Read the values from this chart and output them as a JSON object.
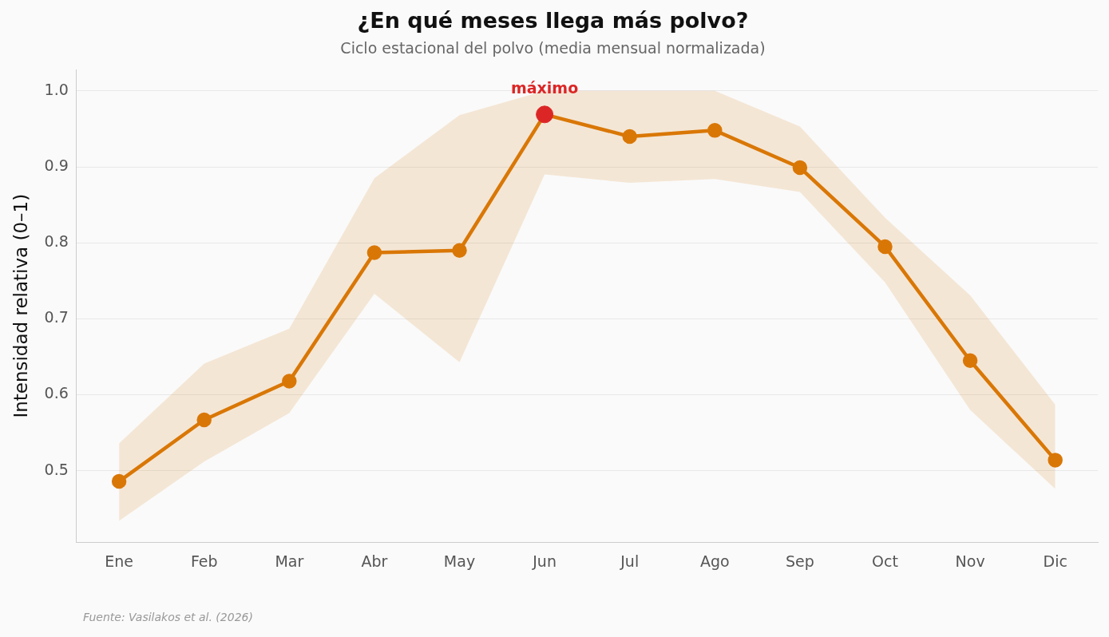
{
  "chart_data": {
    "type": "line",
    "title": "¿En qué meses llega más polvo?",
    "subtitle": "Ciclo estacional del polvo (media mensual normalizada)",
    "ylabel": "Intensidad relativa (0–1)",
    "categories": [
      "Ene",
      "Feb",
      "Mar",
      "Abr",
      "May",
      "Jun",
      "Jul",
      "Ago",
      "Sep",
      "Oct",
      "Nov",
      "Dic"
    ],
    "series": [
      {
        "color": "#d97706",
        "values": [
          0.486,
          0.567,
          0.618,
          0.787,
          0.79,
          0.969,
          0.94,
          0.948,
          0.899,
          0.795,
          0.645,
          0.514
        ],
        "lower": [
          0.434,
          0.512,
          0.576,
          0.733,
          0.643,
          0.89,
          0.879,
          0.884,
          0.867,
          0.748,
          0.58,
          0.476
        ],
        "upper": [
          0.536,
          0.641,
          0.687,
          0.885,
          0.968,
          1.0,
          1.0,
          1.0,
          0.953,
          0.833,
          0.731,
          0.587
        ]
      },
      {
        "type": "scatter",
        "color": "#dc2626",
        "x": [
          "Jun"
        ],
        "values": [
          0.969
        ]
      }
    ],
    "ylim": [
      0.406,
      1.028
    ],
    "yticks": [
      0.5,
      0.6,
      0.7,
      0.8,
      0.9,
      {
        "value": 1,
        "label": "1.0"
      }
    ],
    "grid": "y",
    "marker": "circle",
    "line_style": "solid",
    "legend": false,
    "annotations": [
      {
        "text": "máximo",
        "x": "Jun",
        "y": 0.969
      },
      "Fuente: Vasilakos et al. (2026)"
    ]
  }
}
